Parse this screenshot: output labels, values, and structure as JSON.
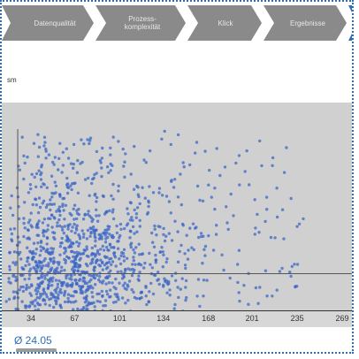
{
  "steps": [
    {
      "label": "Datenqualität",
      "active": false
    },
    {
      "label": "Prozess-\nkomplexität",
      "active": false
    },
    {
      "label": "Klick",
      "active": false
    },
    {
      "label": "Ergebnisse",
      "active": false
    },
    {
      "label": "",
      "active": true
    }
  ],
  "colors": {
    "step_bg": "#8a8a8a",
    "step_active": "#2d6fb4",
    "plot_bg": "#d0d0d0",
    "dot": "#3c67c5",
    "mean_text": "#2d6fb4"
  },
  "y_unit": "sm",
  "mean_label": "Ø 24.05",
  "chart_data": {
    "type": "scatter",
    "title": "",
    "xlabel": "",
    "ylabel": "",
    "x_ticks": [
      "34",
      "67",
      "101",
      "134",
      "168",
      "201",
      "235",
      "269"
    ],
    "xlim": [
      12,
      283
    ],
    "ylim": [
      0,
      100
    ],
    "mean_x": 24.05,
    "mean_y": 18,
    "grid": false,
    "point_color": "#3c67c5",
    "series_description": "dense cloud of several thousand points concentrated at low x, thinning toward high x and high y"
  }
}
